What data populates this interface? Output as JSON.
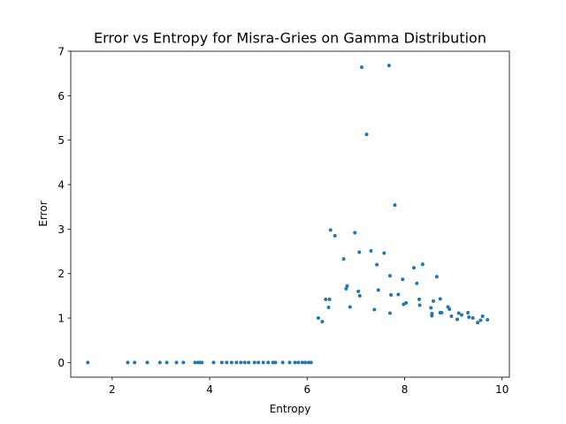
{
  "chart_data": {
    "type": "scatter",
    "title": "Error vs Entropy for Misra-Gries on Gamma Distribution",
    "xlabel": "Entropy",
    "ylabel": "Error",
    "xlim": [
      1.15,
      10.15
    ],
    "ylim": [
      -0.33,
      7.0
    ],
    "xticks": [
      2,
      4,
      6,
      8,
      10
    ],
    "yticks": [
      0,
      1,
      2,
      3,
      4,
      5,
      6,
      7
    ],
    "grid": false,
    "legend": "none",
    "point_color": "#1f77b4",
    "points": [
      [
        1.5,
        0.0
      ],
      [
        2.32,
        0.0
      ],
      [
        2.46,
        0.0
      ],
      [
        2.72,
        0.0
      ],
      [
        2.98,
        0.0
      ],
      [
        3.12,
        0.0
      ],
      [
        3.32,
        0.0
      ],
      [
        3.46,
        0.0
      ],
      [
        3.7,
        0.0
      ],
      [
        3.76,
        0.0
      ],
      [
        3.8,
        0.0
      ],
      [
        3.84,
        0.0
      ],
      [
        4.08,
        0.0
      ],
      [
        4.25,
        0.0
      ],
      [
        4.35,
        0.0
      ],
      [
        4.45,
        0.0
      ],
      [
        4.55,
        0.0
      ],
      [
        4.64,
        0.0
      ],
      [
        4.72,
        0.0
      ],
      [
        4.8,
        0.0
      ],
      [
        4.92,
        0.0
      ],
      [
        5.0,
        0.0
      ],
      [
        5.1,
        0.0
      ],
      [
        5.2,
        0.0
      ],
      [
        5.3,
        0.0
      ],
      [
        5.35,
        0.0
      ],
      [
        5.5,
        0.0
      ],
      [
        5.64,
        0.0
      ],
      [
        5.75,
        0.0
      ],
      [
        5.82,
        0.0
      ],
      [
        5.9,
        0.0
      ],
      [
        5.96,
        0.0
      ],
      [
        6.03,
        0.0
      ],
      [
        6.08,
        0.0
      ],
      [
        6.23,
        1.0
      ],
      [
        6.31,
        0.92
      ],
      [
        6.38,
        1.42
      ],
      [
        6.44,
        1.24
      ],
      [
        6.46,
        1.42
      ],
      [
        6.48,
        2.98
      ],
      [
        6.57,
        2.85
      ],
      [
        6.75,
        2.33
      ],
      [
        6.8,
        1.66
      ],
      [
        6.82,
        1.72
      ],
      [
        6.88,
        1.25
      ],
      [
        6.98,
        2.92
      ],
      [
        7.05,
        1.6
      ],
      [
        7.07,
        2.48
      ],
      [
        7.08,
        1.5
      ],
      [
        7.12,
        6.64
      ],
      [
        7.22,
        5.13
      ],
      [
        7.31,
        2.51
      ],
      [
        7.38,
        1.19
      ],
      [
        7.43,
        2.2
      ],
      [
        7.46,
        1.63
      ],
      [
        7.58,
        2.46
      ],
      [
        7.68,
        6.68
      ],
      [
        7.7,
        1.95
      ],
      [
        7.7,
        1.11
      ],
      [
        7.72,
        1.52
      ],
      [
        7.8,
        3.54
      ],
      [
        7.87,
        1.53
      ],
      [
        7.96,
        1.87
      ],
      [
        7.98,
        1.31
      ],
      [
        8.03,
        1.34
      ],
      [
        8.19,
        2.13
      ],
      [
        8.25,
        1.78
      ],
      [
        8.3,
        1.42
      ],
      [
        8.31,
        1.29
      ],
      [
        8.37,
        2.21
      ],
      [
        8.54,
        1.23
      ],
      [
        8.56,
        1.1
      ],
      [
        8.56,
        1.05
      ],
      [
        8.59,
        1.38
      ],
      [
        8.66,
        1.93
      ],
      [
        8.73,
        1.12
      ],
      [
        8.73,
        1.43
      ],
      [
        8.76,
        1.12
      ],
      [
        8.89,
        1.25
      ],
      [
        8.92,
        1.2
      ],
      [
        8.96,
        1.04
      ],
      [
        9.08,
        0.97
      ],
      [
        9.11,
        1.11
      ],
      [
        9.17,
        1.07
      ],
      [
        9.3,
        1.12
      ],
      [
        9.32,
        1.02
      ],
      [
        9.4,
        1.0
      ],
      [
        9.5,
        0.9
      ],
      [
        9.56,
        0.95
      ],
      [
        9.6,
        1.04
      ],
      [
        9.7,
        0.96
      ]
    ]
  }
}
